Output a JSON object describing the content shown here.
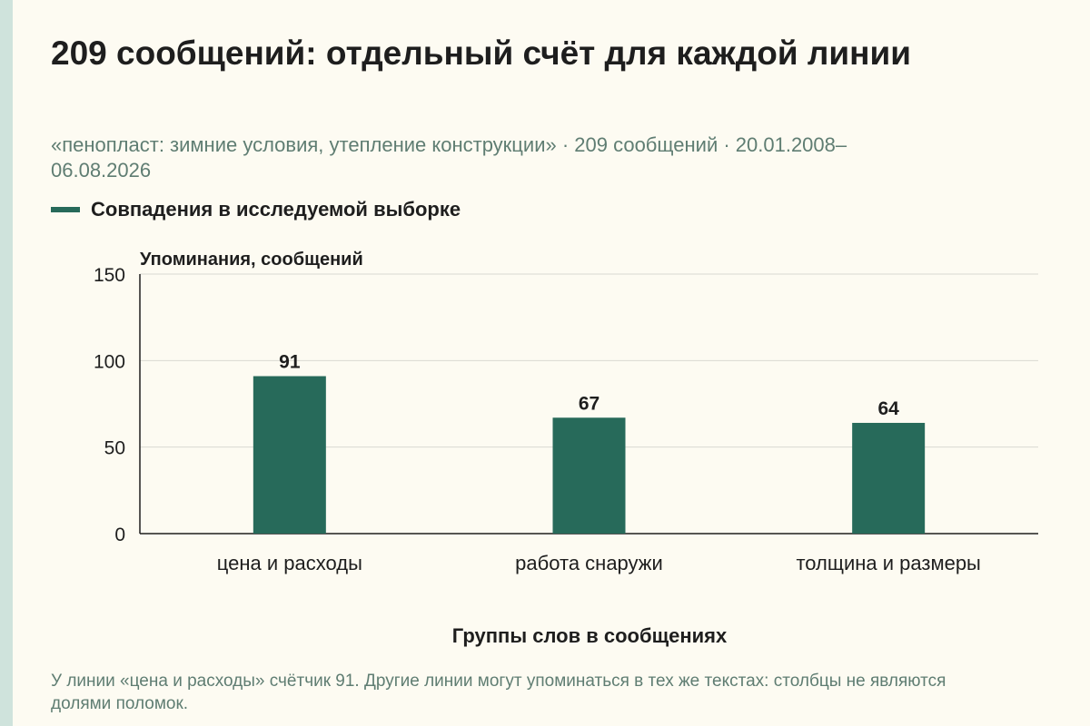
{
  "title": "209 сообщений: отдельный счёт для каждой линии",
  "subtitle": "«пенопласт: зимние условия, утепление конструкции» · 209 сообщений · 20.01.2008–06.08.2026",
  "legend": {
    "label": "Совпадения в исследуемой выборке"
  },
  "note": "У линии «цена и расходы» счётчик 91. Другие линии могут упоминаться в тех же текстах: столбцы не являются долями поломок.",
  "colors": {
    "bar": "#276a5a",
    "background": "#fdfbf2",
    "grid": "#d9d9d2",
    "muted_text": "#5f7d72",
    "accent_stripe": "#cfe3dc"
  },
  "chart_data": {
    "type": "bar",
    "categories": [
      "цена и расходы",
      "работа снаружи",
      "толщина и размеры"
    ],
    "series": [
      {
        "name": "Совпадения в исследуемой выборке",
        "values": [
          91,
          67,
          64
        ]
      }
    ],
    "ylabel": "Упоминания, сообщений",
    "xlabel": "Группы слов в сообщениях",
    "ylim": [
      0,
      150
    ],
    "yticks": [
      0,
      50,
      100,
      150
    ],
    "grid": true,
    "legend_position": "top-left",
    "data_labels": [
      "91",
      "67",
      "64"
    ]
  }
}
